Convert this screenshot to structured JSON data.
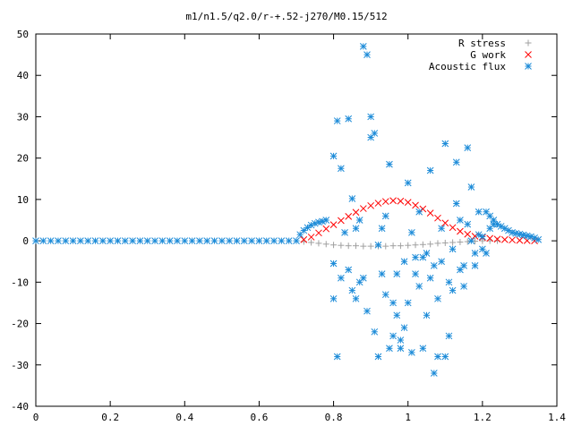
{
  "chart_data": {
    "type": "scatter",
    "title": "m1/n1.5/q2.0/r-+.52-j270/M0.15/512",
    "xlabel": "",
    "ylabel": "",
    "xlim": [
      0,
      1.4
    ],
    "ylim": [
      -40,
      50
    ],
    "x_ticks": [
      "0",
      "0.2",
      "0.4",
      "0.6",
      "0.8",
      "1",
      "1.2",
      "1.4"
    ],
    "y_ticks": [
      "-40",
      "-30",
      "-20",
      "-10",
      "0",
      "10",
      "20",
      "30",
      "40",
      "50"
    ],
    "legend_position": "top-right",
    "grid": false,
    "series": [
      {
        "name": "R stress",
        "color": "#a0a0a0",
        "marker": "plus",
        "points": [
          [
            0.72,
            -0.2
          ],
          [
            0.74,
            -0.4
          ],
          [
            0.76,
            -0.6
          ],
          [
            0.78,
            -0.8
          ],
          [
            0.8,
            -1.0
          ],
          [
            0.82,
            -1.1
          ],
          [
            0.84,
            -1.2
          ],
          [
            0.86,
            -1.2
          ],
          [
            0.88,
            -1.3
          ],
          [
            0.9,
            -1.3
          ],
          [
            0.92,
            -1.3
          ],
          [
            0.94,
            -1.3
          ],
          [
            0.96,
            -1.2
          ],
          [
            0.98,
            -1.2
          ],
          [
            1.0,
            -1.1
          ],
          [
            1.02,
            -1.0
          ],
          [
            1.04,
            -0.9
          ],
          [
            1.06,
            -0.8
          ],
          [
            1.08,
            -0.6
          ],
          [
            1.1,
            -0.5
          ],
          [
            1.12,
            -0.4
          ],
          [
            1.14,
            -0.3
          ],
          [
            1.16,
            -0.2
          ],
          [
            1.18,
            -0.1
          ],
          [
            1.2,
            0
          ],
          [
            1.22,
            0
          ],
          [
            1.24,
            0
          ]
        ]
      },
      {
        "name": "G work",
        "color": "#ff0000",
        "marker": "cross",
        "points": [
          [
            0.72,
            0.3
          ],
          [
            0.74,
            0.9
          ],
          [
            0.76,
            1.9
          ],
          [
            0.78,
            2.9
          ],
          [
            0.8,
            3.9
          ],
          [
            0.82,
            4.9
          ],
          [
            0.84,
            5.9
          ],
          [
            0.86,
            6.9
          ],
          [
            0.88,
            7.8
          ],
          [
            0.9,
            8.5
          ],
          [
            0.92,
            9.1
          ],
          [
            0.94,
            9.5
          ],
          [
            0.96,
            9.7
          ],
          [
            0.98,
            9.6
          ],
          [
            1.0,
            9.3
          ],
          [
            1.02,
            8.6
          ],
          [
            1.04,
            7.7
          ],
          [
            1.06,
            6.7
          ],
          [
            1.08,
            5.5
          ],
          [
            1.1,
            4.3
          ],
          [
            1.12,
            3.2
          ],
          [
            1.14,
            2.3
          ],
          [
            1.16,
            1.6
          ],
          [
            1.18,
            1.1
          ],
          [
            1.2,
            0.8
          ],
          [
            1.22,
            0.6
          ],
          [
            1.24,
            0.4
          ],
          [
            1.26,
            0.3
          ],
          [
            1.28,
            0.2
          ],
          [
            1.3,
            0.1
          ],
          [
            1.32,
            0.05
          ],
          [
            1.34,
            0
          ]
        ]
      },
      {
        "name": "Acoustic flux",
        "color": "#1c8bd8",
        "marker": "star",
        "points": [
          [
            0,
            0
          ],
          [
            0.02,
            0
          ],
          [
            0.04,
            0
          ],
          [
            0.06,
            0
          ],
          [
            0.08,
            0
          ],
          [
            0.1,
            0
          ],
          [
            0.12,
            0
          ],
          [
            0.14,
            0
          ],
          [
            0.16,
            0
          ],
          [
            0.18,
            0
          ],
          [
            0.2,
            0
          ],
          [
            0.22,
            0
          ],
          [
            0.24,
            0
          ],
          [
            0.26,
            0
          ],
          [
            0.28,
            0
          ],
          [
            0.3,
            0
          ],
          [
            0.32,
            0
          ],
          [
            0.34,
            0
          ],
          [
            0.36,
            0
          ],
          [
            0.38,
            0
          ],
          [
            0.4,
            0
          ],
          [
            0.42,
            0
          ],
          [
            0.44,
            0
          ],
          [
            0.46,
            0
          ],
          [
            0.48,
            0
          ],
          [
            0.5,
            0
          ],
          [
            0.52,
            0
          ],
          [
            0.54,
            0
          ],
          [
            0.56,
            0
          ],
          [
            0.58,
            0
          ],
          [
            0.6,
            0
          ],
          [
            0.62,
            0
          ],
          [
            0.64,
            0
          ],
          [
            0.66,
            0
          ],
          [
            0.68,
            0
          ],
          [
            0.7,
            0
          ],
          [
            0.71,
            1.5
          ],
          [
            0.72,
            2.5
          ],
          [
            0.73,
            3.2
          ],
          [
            0.74,
            3.8
          ],
          [
            0.75,
            4.2
          ],
          [
            0.76,
            4.5
          ],
          [
            0.77,
            4.7
          ],
          [
            0.78,
            5
          ],
          [
            0.8,
            -5.5
          ],
          [
            0.8,
            -14
          ],
          [
            0.8,
            20.5
          ],
          [
            0.81,
            29
          ],
          [
            0.81,
            -28
          ],
          [
            0.82,
            17.5
          ],
          [
            0.82,
            -9
          ],
          [
            0.83,
            2
          ],
          [
            0.84,
            -7
          ],
          [
            0.84,
            29.5
          ],
          [
            0.85,
            10.2
          ],
          [
            0.85,
            -12
          ],
          [
            0.86,
            3
          ],
          [
            0.86,
            -14
          ],
          [
            0.87,
            -10
          ],
          [
            0.87,
            5
          ],
          [
            0.88,
            47
          ],
          [
            0.88,
            -9
          ],
          [
            0.89,
            45
          ],
          [
            0.89,
            -17
          ],
          [
            0.9,
            30
          ],
          [
            0.9,
            25
          ],
          [
            0.91,
            26
          ],
          [
            0.91,
            -22
          ],
          [
            0.92,
            -28
          ],
          [
            0.92,
            -1
          ],
          [
            0.93,
            -8
          ],
          [
            0.93,
            3
          ],
          [
            0.94,
            -13
          ],
          [
            0.94,
            6
          ],
          [
            0.95,
            -26
          ],
          [
            0.95,
            18.5
          ],
          [
            0.96,
            -15
          ],
          [
            0.96,
            -23
          ],
          [
            0.97,
            -18
          ],
          [
            0.97,
            -8
          ],
          [
            0.98,
            -26
          ],
          [
            0.98,
            -24
          ],
          [
            0.99,
            -5
          ],
          [
            0.99,
            -21
          ],
          [
            1.0,
            -15
          ],
          [
            1.0,
            14
          ],
          [
            1.01,
            -27
          ],
          [
            1.01,
            2
          ],
          [
            1.02,
            -4
          ],
          [
            1.02,
            -8
          ],
          [
            1.03,
            7
          ],
          [
            1.03,
            -11
          ],
          [
            1.04,
            -26
          ],
          [
            1.04,
            -4
          ],
          [
            1.05,
            -18
          ],
          [
            1.05,
            -3
          ],
          [
            1.06,
            -9
          ],
          [
            1.06,
            17
          ],
          [
            1.07,
            -32
          ],
          [
            1.07,
            -6
          ],
          [
            1.08,
            -28
          ],
          [
            1.08,
            -14
          ],
          [
            1.09,
            -5
          ],
          [
            1.09,
            3
          ],
          [
            1.1,
            -28
          ],
          [
            1.1,
            23.5
          ],
          [
            1.11,
            -23
          ],
          [
            1.11,
            -10
          ],
          [
            1.12,
            -2
          ],
          [
            1.12,
            -12
          ],
          [
            1.13,
            19
          ],
          [
            1.13,
            9
          ],
          [
            1.14,
            5
          ],
          [
            1.14,
            -7
          ],
          [
            1.15,
            -11
          ],
          [
            1.15,
            -6
          ],
          [
            1.16,
            22.5
          ],
          [
            1.16,
            4
          ],
          [
            1.17,
            13
          ],
          [
            1.17,
            0
          ],
          [
            1.18,
            -3
          ],
          [
            1.18,
            -6
          ],
          [
            1.19,
            7
          ],
          [
            1.19,
            1.5
          ],
          [
            1.2,
            1
          ],
          [
            1.2,
            -2
          ],
          [
            1.21,
            -3
          ],
          [
            1.21,
            7
          ],
          [
            1.22,
            6
          ],
          [
            1.22,
            3
          ],
          [
            1.23,
            5
          ],
          [
            1.23,
            4
          ],
          [
            1.24,
            4
          ],
          [
            1.25,
            3.5
          ],
          [
            1.26,
            3
          ],
          [
            1.27,
            2.5
          ],
          [
            1.28,
            2
          ],
          [
            1.29,
            1.8
          ],
          [
            1.3,
            1.6
          ],
          [
            1.31,
            1.4
          ],
          [
            1.32,
            1.2
          ],
          [
            1.33,
            1
          ],
          [
            1.34,
            0.7
          ],
          [
            1.35,
            0.3
          ]
        ]
      }
    ]
  }
}
